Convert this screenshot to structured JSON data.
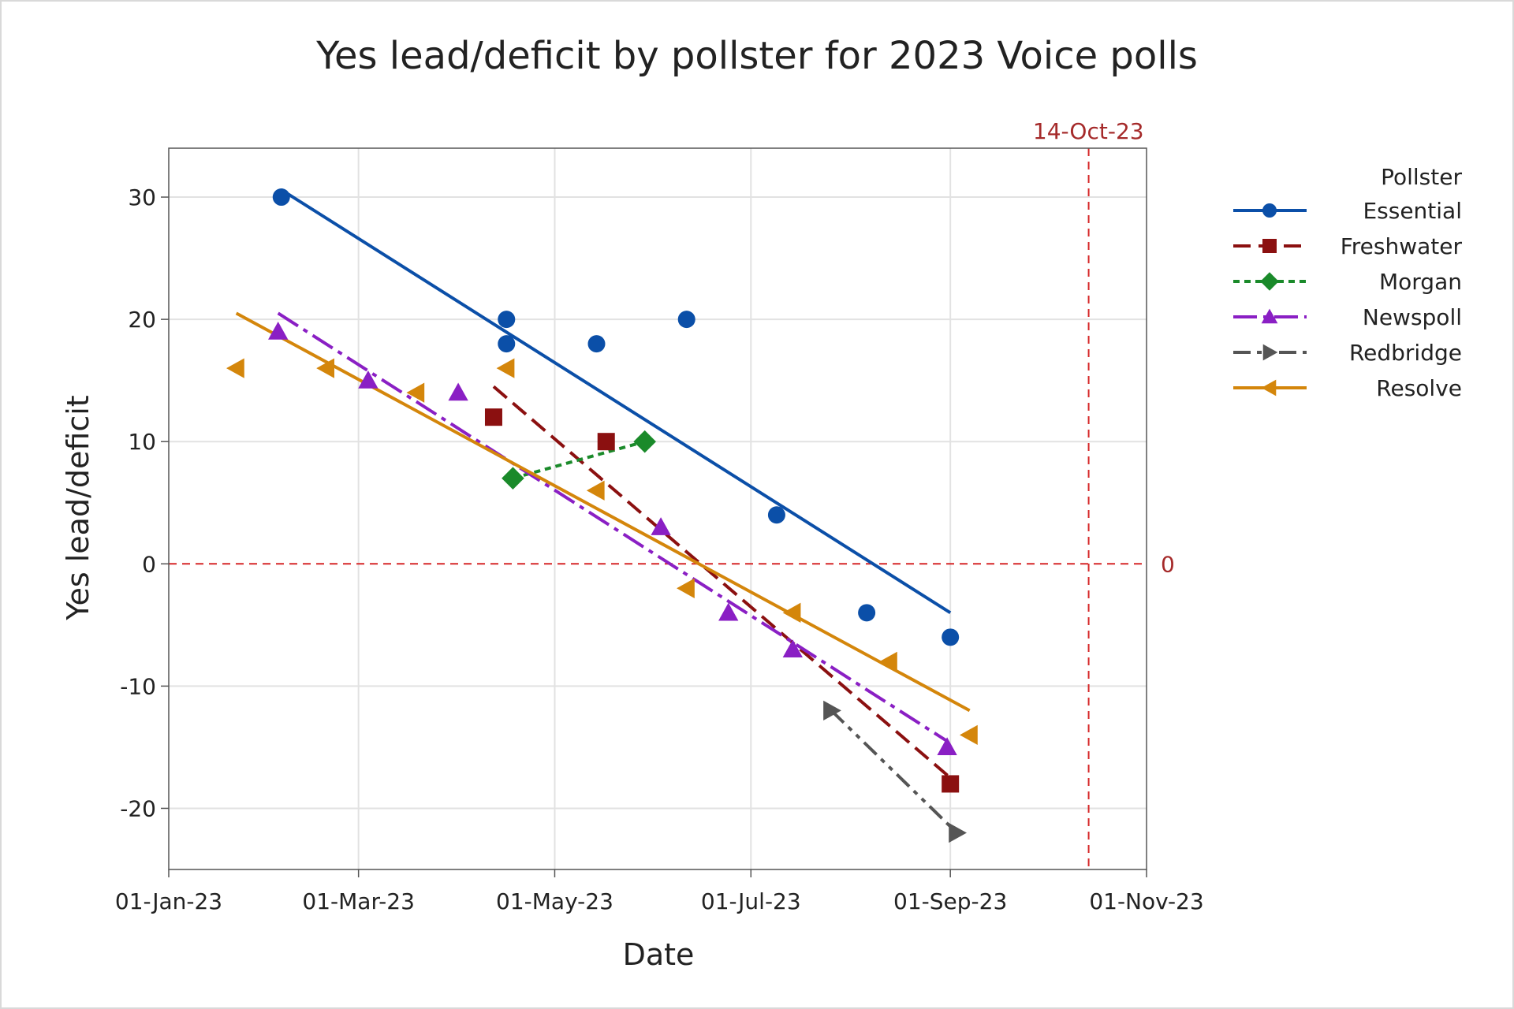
{
  "chart_data": {
    "type": "scatter",
    "title": "Yes lead/deficit by pollster for 2023 Voice polls",
    "xlabel": "Date",
    "ylabel": "Yes lead/deficit",
    "x_tick_labels": [
      "01-Jan-23",
      "01-Mar-23",
      "01-May-23",
      "01-Jul-23",
      "01-Sep-23",
      "01-Nov-23"
    ],
    "x_tick_days": [
      0,
      59,
      120,
      181,
      243,
      304
    ],
    "xlim_days": [
      0,
      304
    ],
    "ylim": [
      -25,
      34
    ],
    "y_ticks": [
      -20,
      -10,
      0,
      10,
      20,
      30
    ],
    "y_tick_labels": [
      "-20",
      "-10",
      "0",
      "10",
      "20",
      "30"
    ],
    "reference_lines": {
      "vertical": {
        "day": 286,
        "label": "14-Oct-23",
        "color": "#d62728"
      },
      "horizontal": {
        "value": 0,
        "label": "0",
        "color": "#d62728"
      }
    },
    "legend_title": "Pollster",
    "series": [
      {
        "name": "Essential",
        "color": "#0b4fa8",
        "marker": "circle",
        "dash": "",
        "points": [
          [
            35,
            30
          ],
          [
            105,
            18
          ],
          [
            105,
            20
          ],
          [
            133,
            18
          ],
          [
            161,
            20
          ],
          [
            189,
            4
          ],
          [
            217,
            -4
          ],
          [
            243,
            -6
          ]
        ],
        "fit": [
          [
            35,
            30.6
          ],
          [
            243,
            -4
          ]
        ]
      },
      {
        "name": "Freshwater",
        "color": "#8b1010",
        "marker": "square",
        "dash": "22 10",
        "points": [
          [
            101,
            12
          ],
          [
            136,
            10
          ],
          [
            243,
            -18
          ]
        ],
        "fit": [
          [
            101,
            14.5
          ],
          [
            243,
            -17.5
          ]
        ]
      },
      {
        "name": "Morgan",
        "color": "#1a8a2a",
        "marker": "diamond",
        "dash": "8 6",
        "points": [
          [
            107,
            7
          ],
          [
            148,
            10
          ]
        ],
        "fit": [
          [
            107,
            7
          ],
          [
            148,
            10
          ]
        ]
      },
      {
        "name": "Newspoll",
        "color": "#8a1fc4",
        "marker": "triangle-up",
        "dash": "30 8 6 8",
        "points": [
          [
            34,
            19
          ],
          [
            62,
            15
          ],
          [
            90,
            14
          ],
          [
            153,
            3
          ],
          [
            174,
            -4
          ],
          [
            194,
            -7
          ],
          [
            242,
            -15
          ]
        ],
        "fit": [
          [
            34,
            20.5
          ],
          [
            242,
            -14.5
          ]
        ]
      },
      {
        "name": "Redbridge",
        "color": "#555555",
        "marker": "triangle-right",
        "dash": "22 8 6 8 6 8",
        "points": [
          [
            206,
            -12
          ],
          [
            245,
            -22
          ]
        ],
        "fit": [
          [
            206,
            -12
          ],
          [
            245,
            -22
          ]
        ]
      },
      {
        "name": "Resolve",
        "color": "#d4860b",
        "marker": "triangle-left",
        "dash": "",
        "points": [
          [
            21,
            16
          ],
          [
            49,
            16
          ],
          [
            77,
            14
          ],
          [
            105,
            16
          ],
          [
            133,
            6
          ],
          [
            161,
            -2
          ],
          [
            194,
            -4
          ],
          [
            224,
            -8
          ],
          [
            249,
            -14
          ]
        ],
        "fit": [
          [
            21,
            20.5
          ],
          [
            249,
            -12
          ]
        ]
      }
    ]
  }
}
